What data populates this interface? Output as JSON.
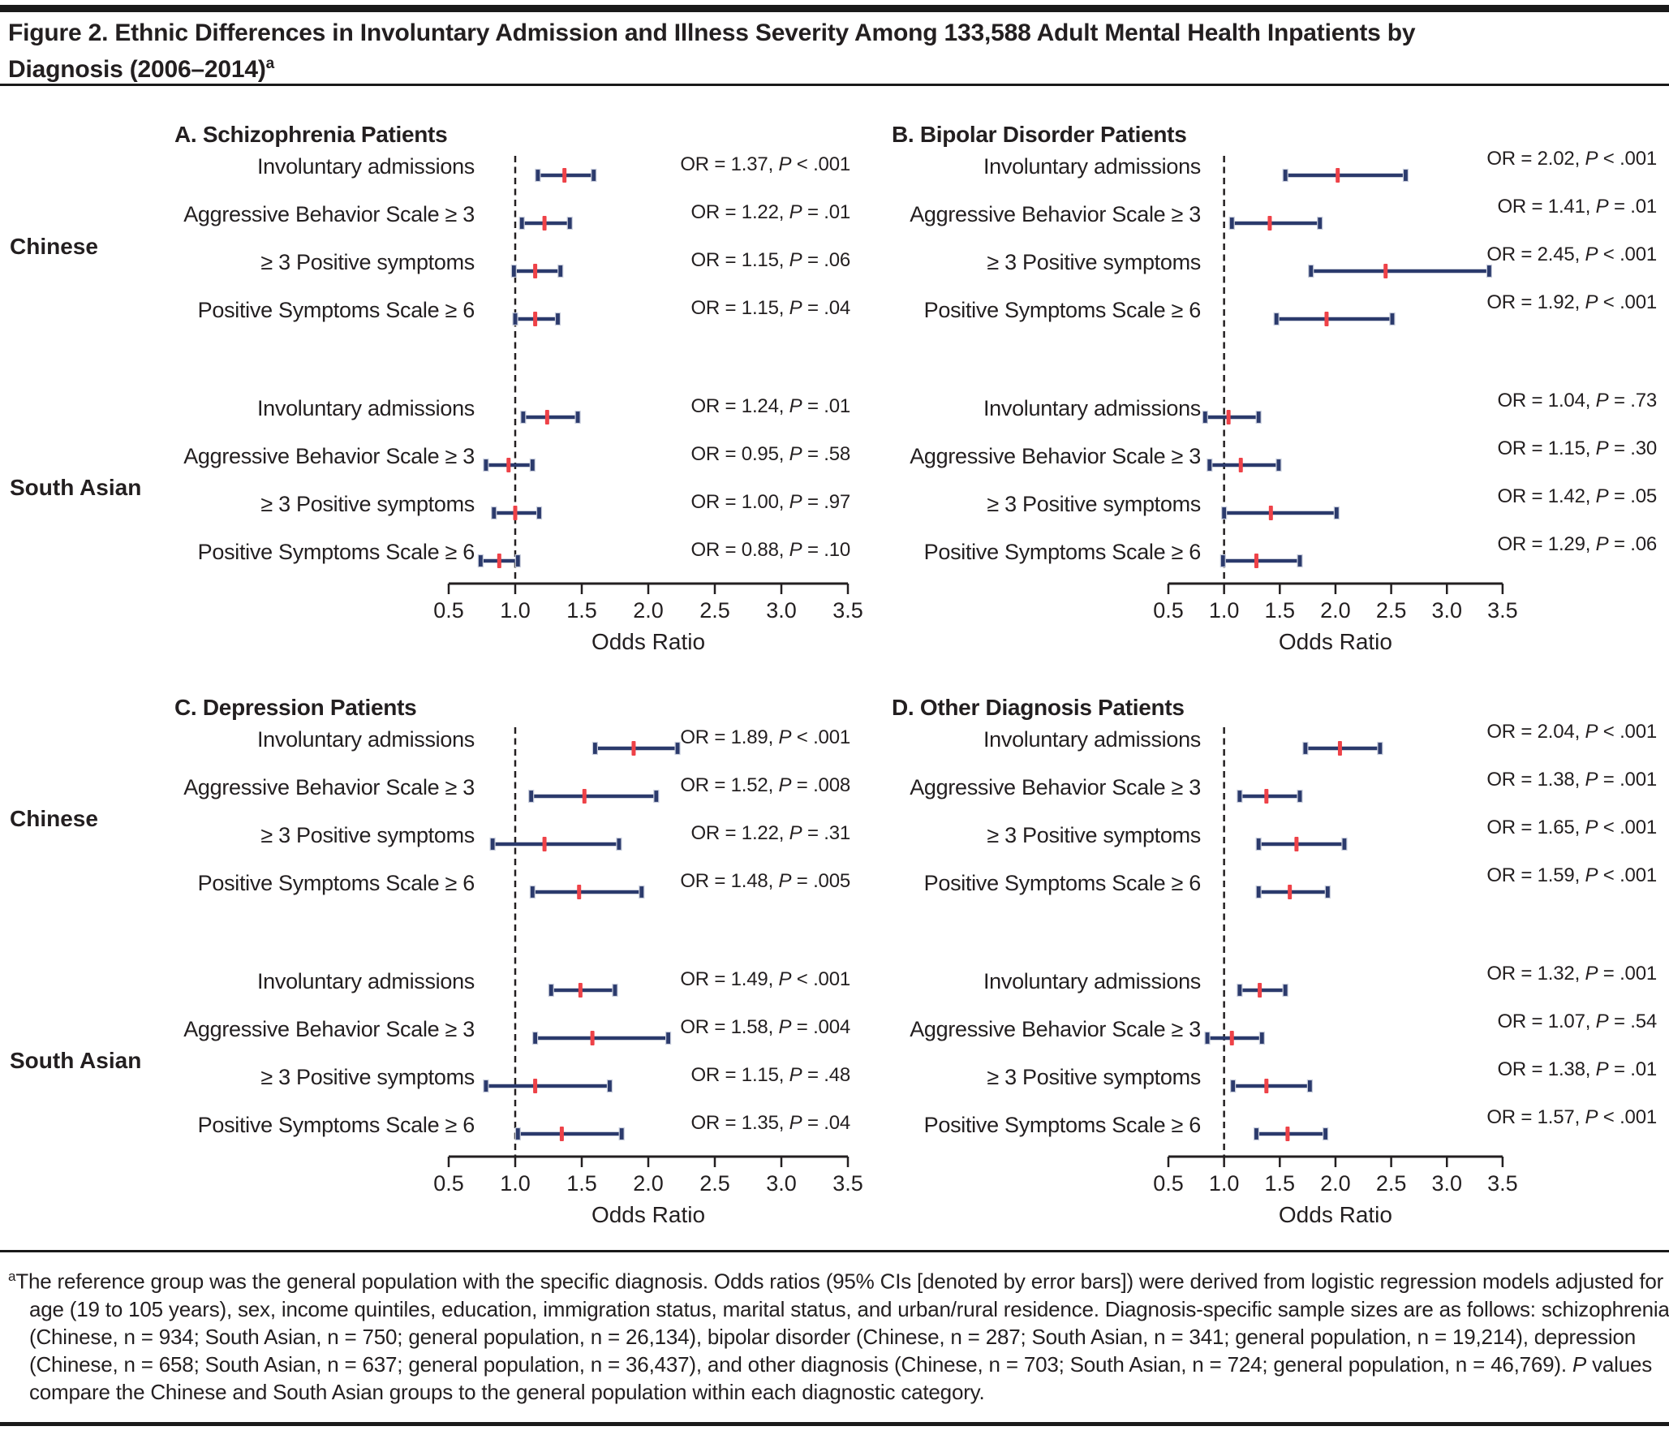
{
  "title": {
    "line1": "Figure 2. Ethnic Differences in Involuntary Admission and Illness Severity Among 133,588 Adult Mental Health Inpatients by",
    "line2": "Diagnosis (2006–2014)",
    "sup": "a"
  },
  "strings": {
    "p_label": "P"
  },
  "group_labels": [
    "Chinese",
    "South Asian"
  ],
  "colors": {
    "bar_color": "#2B3A6C",
    "marker_color": "#EE4248",
    "cap_outline": "#C9CEDC",
    "text_color": "#231F20"
  },
  "footnote": {
    "sup": "a",
    "part1": "The reference group was the general population with the specific diagnosis. Odds ratios (95% CIs [denoted by error bars]) were derived from logistic regression models adjusted for age (19 to 105 years), sex, income quintiles, education, immigration status, marital status, and urban/rural residence. Diagnosis-specific sample sizes are as follows: schizophrenia (Chinese, n = 934; South Asian, n = 750; general population, n = 26,134), bipolar disorder (Chinese, n = 287; South Asian, n = 341; general population, n = 19,214), depression (Chinese, n = 658; South Asian, n = 637; general population, n = 36,437), and other diagnosis (Chinese, n = 703; South Asian, n = 724; general population, n = 46,769). ",
    "p_label": "P",
    "part2": " values compare the Chinese and South Asian groups to the general population within each diagnostic category."
  },
  "chart_data": {
    "type": "forest_plot",
    "xlabel": "Odds Ratio",
    "axis": {
      "min": 0.5,
      "max": 3.5,
      "tick_values": [
        0.5,
        1.0,
        1.5,
        2.0,
        2.5,
        3.0,
        3.5
      ],
      "tick_labels": [
        "0.5",
        "1.0",
        "1.5",
        "2.0",
        "2.5",
        "3.0",
        "3.5"
      ],
      "reference_line": 1.0,
      "grid": false
    },
    "panels": [
      {
        "id": "A",
        "title": "A. Schizophrenia Patients",
        "groups": [
          {
            "name": "Chinese",
            "rows": [
              {
                "label": "Involuntary admissions",
                "or": 1.37,
                "ci_low": 1.17,
                "ci_high": 1.59,
                "or_text": "OR = 1.37,",
                "p_text": "< .001"
              },
              {
                "label": "Aggressive Behavior Scale ≥ 3",
                "or": 1.22,
                "ci_low": 1.05,
                "ci_high": 1.41,
                "or_text": "OR = 1.22,",
                "p_text": "= .01"
              },
              {
                "label": "≥ 3 Positive symptoms",
                "or": 1.15,
                "ci_low": 0.99,
                "ci_high": 1.34,
                "or_text": "OR = 1.15,",
                "p_text": "= .06"
              },
              {
                "label": "Positive Symptoms Scale ≥ 6",
                "or": 1.15,
                "ci_low": 1.0,
                "ci_high": 1.32,
                "or_text": "OR = 1.15,",
                "p_text": "= .04"
              }
            ]
          },
          {
            "name": "South Asian",
            "rows": [
              {
                "label": "Involuntary admissions",
                "or": 1.24,
                "ci_low": 1.06,
                "ci_high": 1.47,
                "or_text": "OR = 1.24,",
                "p_text": "= .01"
              },
              {
                "label": "Aggressive Behavior Scale ≥ 3",
                "or": 0.95,
                "ci_low": 0.78,
                "ci_high": 1.13,
                "or_text": "OR = 0.95,",
                "p_text": "= .58"
              },
              {
                "label": "≥ 3 Positive symptoms",
                "or": 1.0,
                "ci_low": 0.84,
                "ci_high": 1.18,
                "or_text": "OR = 1.00,",
                "p_text": "= .97"
              },
              {
                "label": "Positive Symptoms Scale ≥ 6",
                "or": 0.88,
                "ci_low": 0.74,
                "ci_high": 1.02,
                "or_text": "OR = 0.88,",
                "p_text": "= .10"
              }
            ]
          }
        ]
      },
      {
        "id": "B",
        "title": "B. Bipolar Disorder Patients",
        "groups": [
          {
            "name": "Chinese",
            "rows": [
              {
                "label": "Involuntary admissions",
                "or": 2.02,
                "ci_low": 1.55,
                "ci_high": 2.63,
                "or_text": "OR = 2.02,",
                "p_text": "< .001"
              },
              {
                "label": "Aggressive Behavior Scale ≥ 3",
                "or": 1.41,
                "ci_low": 1.07,
                "ci_high": 1.86,
                "or_text": "OR = 1.41,",
                "p_text": "= .01"
              },
              {
                "label": "≥ 3 Positive symptoms",
                "or": 2.45,
                "ci_low": 1.78,
                "ci_high": 3.38,
                "or_text": "OR = 2.45,",
                "p_text": "< .001"
              },
              {
                "label": "Positive Symptoms Scale ≥ 6",
                "or": 1.92,
                "ci_low": 1.47,
                "ci_high": 2.51,
                "or_text": "OR = 1.92,",
                "p_text": "< .001"
              }
            ]
          },
          {
            "name": "South Asian",
            "rows": [
              {
                "label": "Involuntary admissions",
                "or": 1.04,
                "ci_low": 0.83,
                "ci_high": 1.31,
                "or_text": "OR = 1.04,",
                "p_text": "= .73"
              },
              {
                "label": "Aggressive Behavior Scale ≥ 3",
                "or": 1.15,
                "ci_low": 0.87,
                "ci_high": 1.49,
                "or_text": "OR = 1.15,",
                "p_text": "= .30"
              },
              {
                "label": "≥ 3 Positive symptoms",
                "or": 1.42,
                "ci_low": 1.0,
                "ci_high": 2.01,
                "or_text": "OR = 1.42,",
                "p_text": "= .05"
              },
              {
                "label": "Positive Symptoms Scale ≥ 6",
                "or": 1.29,
                "ci_low": 0.99,
                "ci_high": 1.68,
                "or_text": "OR = 1.29,",
                "p_text": "= .06"
              }
            ]
          }
        ]
      },
      {
        "id": "C",
        "title": "C. Depression Patients",
        "groups": [
          {
            "name": "Chinese",
            "rows": [
              {
                "label": "Involuntary admissions",
                "or": 1.89,
                "ci_low": 1.6,
                "ci_high": 2.22,
                "or_text": "OR = 1.89,",
                "p_text": "< .001"
              },
              {
                "label": "Aggressive Behavior Scale ≥ 3",
                "or": 1.52,
                "ci_low": 1.12,
                "ci_high": 2.06,
                "or_text": "OR = 1.52,",
                "p_text": "= .008"
              },
              {
                "label": "≥ 3 Positive symptoms",
                "or": 1.22,
                "ci_low": 0.83,
                "ci_high": 1.78,
                "or_text": "OR = 1.22,",
                "p_text": "= .31"
              },
              {
                "label": "Positive Symptoms Scale ≥ 6",
                "or": 1.48,
                "ci_low": 1.13,
                "ci_high": 1.95,
                "or_text": "OR = 1.48,",
                "p_text": "= .005"
              }
            ]
          },
          {
            "name": "South Asian",
            "rows": [
              {
                "label": "Involuntary admissions",
                "or": 1.49,
                "ci_low": 1.27,
                "ci_high": 1.75,
                "or_text": "OR = 1.49,",
                "p_text": "< .001"
              },
              {
                "label": "Aggressive Behavior Scale ≥ 3",
                "or": 1.58,
                "ci_low": 1.15,
                "ci_high": 2.15,
                "or_text": "OR = 1.58,",
                "p_text": "= .004"
              },
              {
                "label": "≥ 3 Positive symptoms",
                "or": 1.15,
                "ci_low": 0.78,
                "ci_high": 1.71,
                "or_text": "OR = 1.15,",
                "p_text": "= .48"
              },
              {
                "label": "Positive Symptoms Scale ≥ 6",
                "or": 1.35,
                "ci_low": 1.02,
                "ci_high": 1.8,
                "or_text": "OR = 1.35,",
                "p_text": "= .04"
              }
            ]
          }
        ]
      },
      {
        "id": "D",
        "title": "D. Other Diagnosis Patients",
        "groups": [
          {
            "name": "Chinese",
            "rows": [
              {
                "label": "Involuntary admissions",
                "or": 2.04,
                "ci_low": 1.73,
                "ci_high": 2.4,
                "or_text": "OR = 2.04,",
                "p_text": "< .001"
              },
              {
                "label": "Aggressive Behavior Scale ≥ 3",
                "or": 1.38,
                "ci_low": 1.14,
                "ci_high": 1.68,
                "or_text": "OR = 1.38,",
                "p_text": "= .001"
              },
              {
                "label": "≥ 3 Positive symptoms",
                "or": 1.65,
                "ci_low": 1.31,
                "ci_high": 2.08,
                "or_text": "OR = 1.65,",
                "p_text": "< .001"
              },
              {
                "label": "Positive Symptoms Scale ≥ 6",
                "or": 1.59,
                "ci_low": 1.31,
                "ci_high": 1.93,
                "or_text": "OR = 1.59,",
                "p_text": "< .001"
              }
            ]
          },
          {
            "name": "South Asian",
            "rows": [
              {
                "label": "Involuntary admissions",
                "or": 1.32,
                "ci_low": 1.14,
                "ci_high": 1.55,
                "or_text": "OR = 1.32,",
                "p_text": "= .001"
              },
              {
                "label": "Aggressive Behavior Scale ≥ 3",
                "or": 1.07,
                "ci_low": 0.85,
                "ci_high": 1.34,
                "or_text": "OR = 1.07,",
                "p_text": "= .54"
              },
              {
                "label": "≥ 3 Positive symptoms",
                "or": 1.38,
                "ci_low": 1.08,
                "ci_high": 1.77,
                "or_text": "OR = 1.38,",
                "p_text": "= .01"
              },
              {
                "label": "Positive Symptoms Scale ≥ 6",
                "or": 1.57,
                "ci_low": 1.29,
                "ci_high": 1.91,
                "or_text": "OR = 1.57,",
                "p_text": "< .001"
              }
            ]
          }
        ]
      }
    ]
  }
}
